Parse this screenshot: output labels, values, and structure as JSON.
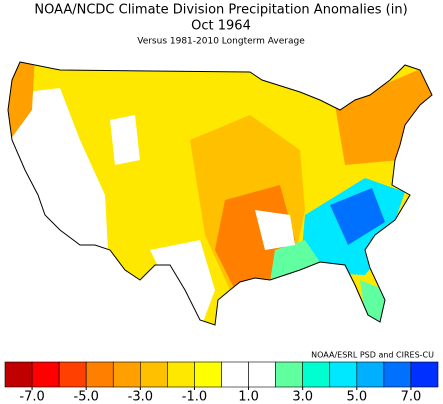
{
  "header": {
    "title": "NOAA/NCDC Climate Division Precipitation Anomalies (in)",
    "period": "Oct 1964",
    "subtitle": "Versus 1981-2010 Longterm Average"
  },
  "credit": "NOAA/ESRL PSD and CIRES-CU",
  "colorbar": {
    "colors": [
      "#c00000",
      "#ff0000",
      "#ff4000",
      "#ff8000",
      "#ffa000",
      "#ffc000",
      "#ffe800",
      "#ffff00",
      "#ffffff",
      "#ffffff",
      "#60ffa0",
      "#00ffd0",
      "#00e8ff",
      "#00b0ff",
      "#0070ff",
      "#0030ff"
    ],
    "xlim": [
      -8,
      8
    ],
    "ticks": [
      {
        "value": -7,
        "label": "-7.0"
      },
      {
        "value": -5,
        "label": "-5.0"
      },
      {
        "value": -3,
        "label": "-3.0"
      },
      {
        "value": -1,
        "label": "-1.0"
      },
      {
        "value": 1,
        "label": "1.0"
      },
      {
        "value": 3,
        "label": "3.0"
      },
      {
        "value": 5,
        "label": "5.0"
      },
      {
        "value": 7,
        "label": "7.0"
      }
    ]
  }
}
